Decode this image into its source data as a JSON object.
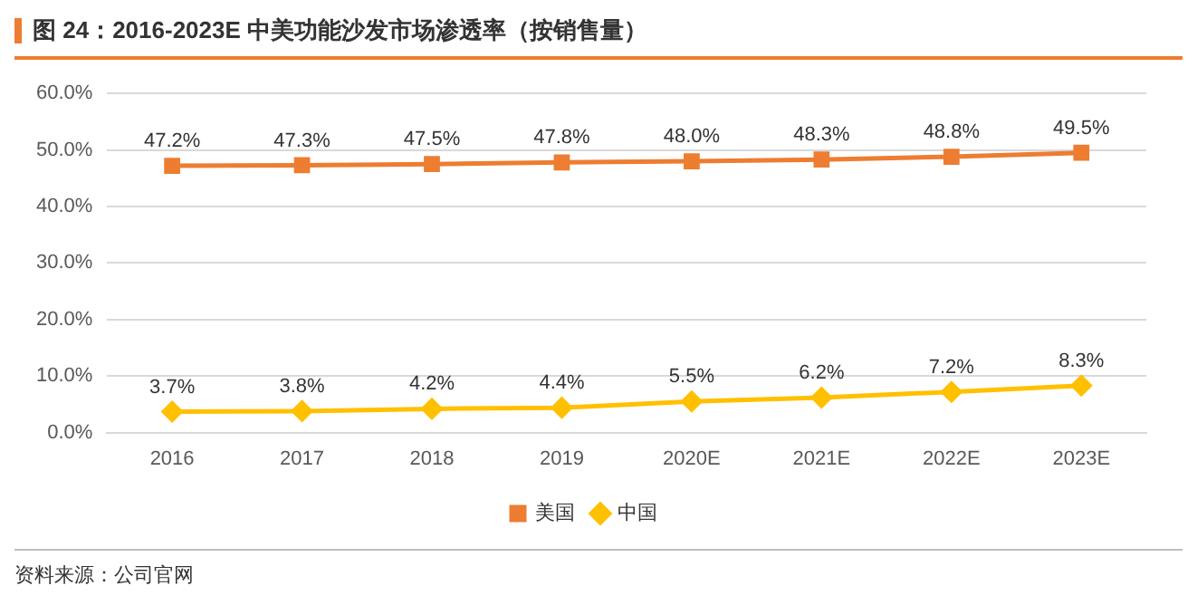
{
  "chart_data": {
    "type": "line",
    "title": "图 24：2016-2023E 中美功能沙发市场渗透率（按销售量）",
    "categories": [
      "2016",
      "2017",
      "2018",
      "2019",
      "2020E",
      "2021E",
      "2022E",
      "2023E"
    ],
    "series": [
      {
        "name": "美国",
        "color": "#ed7d31",
        "marker": "square",
        "values": [
          47.2,
          47.3,
          47.5,
          47.8,
          48.0,
          48.3,
          48.8,
          49.5
        ],
        "value_labels": [
          "47.2%",
          "47.3%",
          "47.5%",
          "47.8%",
          "48.0%",
          "48.3%",
          "48.8%",
          "49.5%"
        ]
      },
      {
        "name": "中国",
        "color": "#ffc000",
        "marker": "diamond",
        "values": [
          3.7,
          3.8,
          4.2,
          4.4,
          5.5,
          6.2,
          7.2,
          8.3
        ],
        "value_labels": [
          "3.7%",
          "3.8%",
          "4.2%",
          "4.4%",
          "5.5%",
          "6.2%",
          "7.2%",
          "8.3%"
        ]
      }
    ],
    "ylim": [
      0,
      60
    ],
    "yticks": [
      {
        "value": 0,
        "label": "0.0%"
      },
      {
        "value": 10,
        "label": "10.0%"
      },
      {
        "value": 20,
        "label": "20.0%"
      },
      {
        "value": 30,
        "label": "30.0%"
      },
      {
        "value": 40,
        "label": "40.0%"
      },
      {
        "value": 50,
        "label": "50.0%"
      },
      {
        "value": 60,
        "label": "60.0%"
      }
    ],
    "grid": "y",
    "legend": "bottom",
    "line_style": "solid",
    "annotations": [
      "资料来源：公司官网"
    ]
  }
}
